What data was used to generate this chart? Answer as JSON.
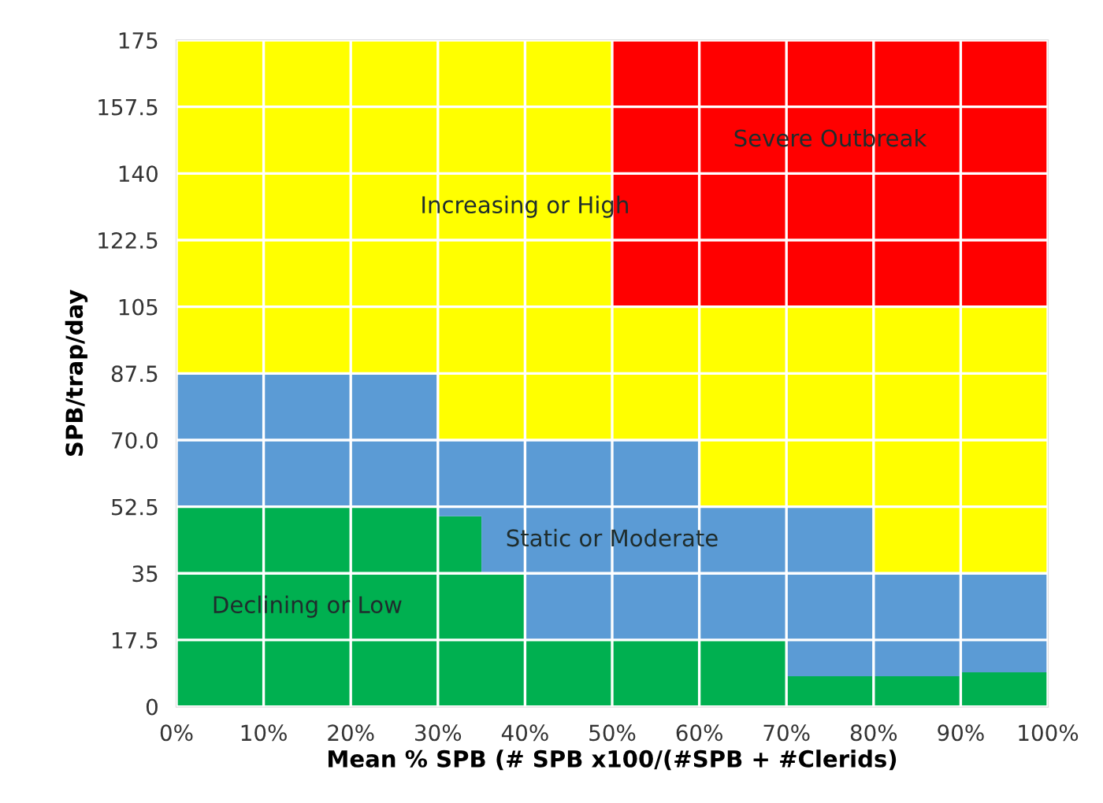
{
  "chart_data": {
    "type": "area",
    "stacked": true,
    "xlabel": "Mean % SPB (# SPB x100/(#SPB + #Clerids)",
    "ylabel": "SPB/trap/day",
    "x": [
      0,
      30,
      35,
      40,
      50,
      60,
      70,
      80,
      90,
      100
    ],
    "series": [
      {
        "color": "#00b050",
        "values": [
          52.5,
          50,
          35,
          17.5,
          17.5,
          17.5,
          8,
          8,
          9,
          9
        ]
      },
      {
        "color": "#5b9bd5",
        "values": [
          35,
          20,
          35,
          52.5,
          52.5,
          35,
          44.5,
          27,
          26,
          26
        ]
      },
      {
        "color": "#ffff00",
        "values": [
          87.5,
          105,
          105,
          105,
          35,
          52.5,
          52.5,
          70,
          70,
          70
        ]
      },
      {
        "color": "#ff0000",
        "values": [
          0,
          0,
          0,
          0,
          70,
          70,
          70,
          70,
          70,
          70
        ]
      }
    ],
    "xlim": [
      0,
      100
    ],
    "ylim": [
      0,
      175
    ],
    "xticks": [
      {
        "value": 0,
        "label": "0%"
      },
      {
        "value": 10,
        "label": "10%"
      },
      {
        "value": 20,
        "label": "20%"
      },
      {
        "value": 30,
        "label": "30%"
      },
      {
        "value": 40,
        "label": "40%"
      },
      {
        "value": 50,
        "label": "50%"
      },
      {
        "value": 60,
        "label": "60%"
      },
      {
        "value": 70,
        "label": "70%"
      },
      {
        "value": 80,
        "label": "80%"
      },
      {
        "value": 90,
        "label": "90%"
      },
      {
        "value": 100,
        "label": "100%"
      }
    ],
    "yticks": [
      0,
      17.5,
      35,
      52.5,
      {
        "value": 70,
        "label": "70.0"
      },
      87.5,
      105,
      122.5,
      140,
      157.5,
      175
    ],
    "grid": true,
    "annotations": [
      "Severe Outbreak",
      "Increasing or High",
      "Static or Moderate",
      "Declining or Low"
    ]
  }
}
